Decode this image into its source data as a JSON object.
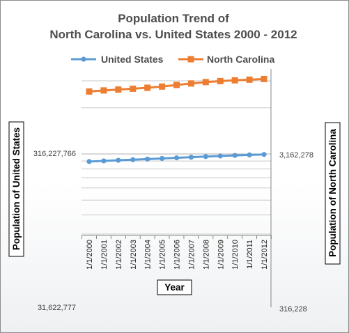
{
  "chart_data": {
    "type": "line",
    "title": [
      "Population Trend of",
      "North Carolina vs. United States 2000 - 2012"
    ],
    "xlabel": "Year",
    "ylabel_left": "Population of United States",
    "ylabel_right": "Population of North Carolina",
    "categories": [
      "1/1/2000",
      "1/1/2001",
      "1/1/2002",
      "1/1/2003",
      "1/1/2004",
      "1/1/2005",
      "1/1/2006",
      "1/1/2007",
      "1/1/2008",
      "1/1/2009",
      "1/1/2010",
      "1/1/2011",
      "1/1/2012"
    ],
    "y_scale": "log",
    "left_axis": {
      "ticks": [
        31622777,
        316227766
      ],
      "tick_labels": [
        "31,622,777",
        "316,227,766"
      ],
      "range": [
        31622777,
        1000000000
      ]
    },
    "right_axis": {
      "ticks": [
        316228,
        3162278
      ],
      "tick_labels": [
        "316,228",
        "3,162,278"
      ],
      "range": [
        316228,
        10000000
      ]
    },
    "series": [
      {
        "name": "United States",
        "axis": "left",
        "color": "#5b9bd5",
        "marker": "circle",
        "values": [
          282162411,
          284968955,
          287625193,
          290107933,
          292805298,
          295516599,
          298379912,
          301231207,
          304093966,
          306771529,
          309326225,
          311587816,
          313914040
        ]
      },
      {
        "name": "North Carolina",
        "axis": "right",
        "color": "#ed7d31",
        "marker": "square",
        "values": [
          8082000,
          8210000,
          8326000,
          8422000,
          8553000,
          8705000,
          8918000,
          9118000,
          9310000,
          9450000,
          9560000,
          9655000,
          9752000
        ]
      }
    ],
    "legend_position": "top",
    "grid": true
  }
}
